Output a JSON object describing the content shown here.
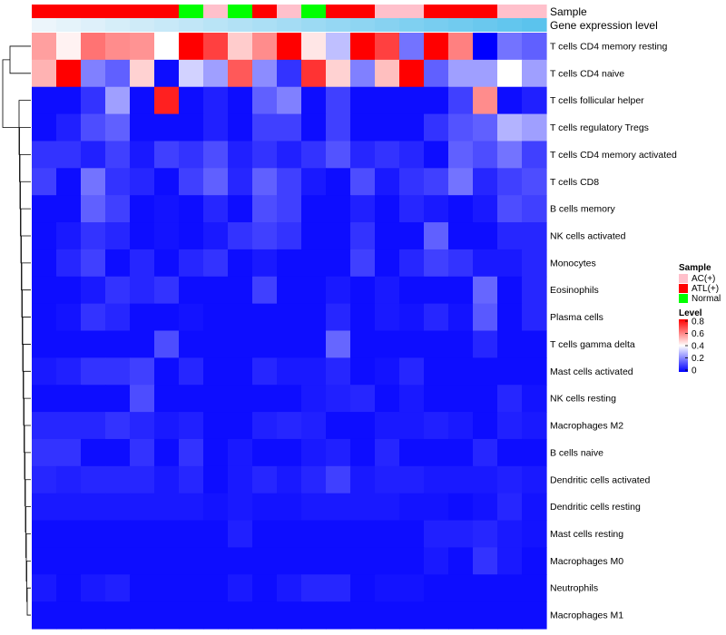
{
  "chart_data": {
    "type": "heatmap",
    "title": "",
    "annotation_tracks": {
      "sample": {
        "label": "Sample",
        "values": [
          "ATL(+)",
          "ATL(+)",
          "ATL(+)",
          "ATL(+)",
          "ATL(+)",
          "ATL(+)",
          "Normal",
          "AC(+)",
          "Normal",
          "ATL(+)",
          "AC(+)",
          "Normal",
          "ATL(+)",
          "ATL(+)",
          "AC(+)",
          "AC(+)",
          "ATL(+)",
          "ATL(+)",
          "ATL(+)",
          "AC(+)",
          "AC(+)"
        ]
      },
      "gene_expression": {
        "label": "Gene expression level",
        "values": [
          0.0,
          0.05,
          0.1,
          0.15,
          0.2,
          0.25,
          0.3,
          0.35,
          0.4,
          0.45,
          0.5,
          0.55,
          0.6,
          0.65,
          0.7,
          0.75,
          0.8,
          0.85,
          0.9,
          0.95,
          1.0
        ]
      }
    },
    "rows": [
      "T cells CD4 memory resting",
      "T cells CD4 naive",
      "T cells follicular helper",
      "T cells regulatory  Tregs",
      "T cells CD4 memory activated",
      "T cells CD8",
      "B cells memory",
      "NK cells activated",
      "Monocytes",
      "Eosinophils",
      "Plasma cells",
      "T cells gamma delta",
      "Mast cells activated",
      "NK cells resting",
      "Macrophages M2",
      "B cells naive",
      "Dendritic cells activated",
      "Dendritic cells resting",
      "Mast cells resting",
      "Macrophages M0",
      "Neutrophils",
      "Macrophages M1"
    ],
    "values": [
      [
        0.55,
        0.42,
        0.62,
        0.58,
        0.57,
        0.4,
        0.8,
        0.7,
        0.48,
        0.58,
        0.8,
        0.44,
        0.3,
        0.8,
        0.7,
        0.18,
        0.8,
        0.6,
        0.0,
        0.18,
        0.15
      ],
      [
        0.52,
        0.8,
        0.2,
        0.15,
        0.47,
        0.02,
        0.33,
        0.25,
        0.66,
        0.22,
        0.08,
        0.72,
        0.47,
        0.2,
        0.5,
        0.8,
        0.15,
        0.25,
        0.25,
        0.4,
        0.25
      ],
      [
        0.02,
        0.02,
        0.08,
        0.25,
        0.02,
        0.75,
        0.02,
        0.05,
        0.02,
        0.15,
        0.2,
        0.02,
        0.1,
        0.02,
        0.02,
        0.02,
        0.02,
        0.1,
        0.58,
        0.02,
        0.05
      ],
      [
        0.02,
        0.05,
        0.12,
        0.15,
        0.02,
        0.02,
        0.02,
        0.05,
        0.02,
        0.1,
        0.1,
        0.02,
        0.1,
        0.02,
        0.02,
        0.02,
        0.08,
        0.13,
        0.15,
        0.28,
        0.25
      ],
      [
        0.08,
        0.08,
        0.05,
        0.1,
        0.04,
        0.1,
        0.08,
        0.12,
        0.05,
        0.08,
        0.05,
        0.08,
        0.13,
        0.06,
        0.08,
        0.06,
        0.02,
        0.15,
        0.12,
        0.18,
        0.1
      ],
      [
        0.1,
        0.02,
        0.18,
        0.08,
        0.06,
        0.02,
        0.1,
        0.15,
        0.06,
        0.15,
        0.1,
        0.04,
        0.02,
        0.12,
        0.04,
        0.08,
        0.1,
        0.18,
        0.06,
        0.1,
        0.12
      ],
      [
        0.02,
        0.02,
        0.15,
        0.1,
        0.02,
        0.03,
        0.02,
        0.06,
        0.02,
        0.12,
        0.1,
        0.02,
        0.02,
        0.05,
        0.02,
        0.06,
        0.04,
        0.02,
        0.04,
        0.12,
        0.1
      ],
      [
        0.02,
        0.04,
        0.08,
        0.06,
        0.02,
        0.03,
        0.02,
        0.04,
        0.08,
        0.1,
        0.08,
        0.02,
        0.02,
        0.08,
        0.02,
        0.02,
        0.15,
        0.02,
        0.02,
        0.06,
        0.06
      ],
      [
        0.02,
        0.06,
        0.1,
        0.02,
        0.06,
        0.02,
        0.06,
        0.08,
        0.02,
        0.04,
        0.02,
        0.02,
        0.02,
        0.1,
        0.02,
        0.06,
        0.1,
        0.08,
        0.04,
        0.04,
        0.06
      ],
      [
        0.02,
        0.02,
        0.04,
        0.08,
        0.06,
        0.08,
        0.02,
        0.02,
        0.02,
        0.1,
        0.02,
        0.02,
        0.04,
        0.02,
        0.04,
        0.02,
        0.02,
        0.02,
        0.16,
        0.02,
        0.06
      ],
      [
        0.02,
        0.03,
        0.08,
        0.06,
        0.02,
        0.02,
        0.03,
        0.02,
        0.02,
        0.02,
        0.02,
        0.02,
        0.06,
        0.02,
        0.04,
        0.03,
        0.06,
        0.03,
        0.14,
        0.02,
        0.06
      ],
      [
        0.02,
        0.02,
        0.02,
        0.02,
        0.02,
        0.12,
        0.02,
        0.02,
        0.02,
        0.02,
        0.02,
        0.02,
        0.16,
        0.02,
        0.02,
        0.02,
        0.02,
        0.02,
        0.06,
        0.02,
        0.02
      ],
      [
        0.04,
        0.05,
        0.08,
        0.08,
        0.1,
        0.02,
        0.06,
        0.02,
        0.02,
        0.06,
        0.04,
        0.04,
        0.06,
        0.02,
        0.03,
        0.06,
        0.02,
        0.02,
        0.02,
        0.02,
        0.02
      ],
      [
        0.02,
        0.02,
        0.02,
        0.02,
        0.12,
        0.02,
        0.02,
        0.02,
        0.02,
        0.02,
        0.02,
        0.04,
        0.05,
        0.06,
        0.02,
        0.04,
        0.02,
        0.02,
        0.02,
        0.06,
        0.03
      ],
      [
        0.06,
        0.06,
        0.06,
        0.08,
        0.06,
        0.04,
        0.05,
        0.02,
        0.02,
        0.05,
        0.06,
        0.05,
        0.02,
        0.02,
        0.04,
        0.04,
        0.05,
        0.04,
        0.02,
        0.05,
        0.04
      ],
      [
        0.08,
        0.08,
        0.02,
        0.02,
        0.08,
        0.02,
        0.08,
        0.02,
        0.04,
        0.02,
        0.02,
        0.04,
        0.05,
        0.02,
        0.06,
        0.02,
        0.02,
        0.02,
        0.06,
        0.02,
        0.02
      ],
      [
        0.06,
        0.05,
        0.06,
        0.06,
        0.06,
        0.04,
        0.06,
        0.02,
        0.04,
        0.06,
        0.04,
        0.06,
        0.1,
        0.04,
        0.05,
        0.05,
        0.04,
        0.04,
        0.04,
        0.05,
        0.04
      ],
      [
        0.04,
        0.04,
        0.04,
        0.04,
        0.04,
        0.04,
        0.04,
        0.03,
        0.04,
        0.03,
        0.03,
        0.04,
        0.04,
        0.04,
        0.04,
        0.03,
        0.03,
        0.02,
        0.03,
        0.06,
        0.03
      ],
      [
        0.02,
        0.02,
        0.02,
        0.02,
        0.02,
        0.02,
        0.02,
        0.02,
        0.05,
        0.02,
        0.02,
        0.02,
        0.02,
        0.02,
        0.02,
        0.02,
        0.05,
        0.05,
        0.06,
        0.04,
        0.03
      ],
      [
        0.02,
        0.02,
        0.02,
        0.02,
        0.02,
        0.02,
        0.02,
        0.02,
        0.02,
        0.02,
        0.02,
        0.02,
        0.02,
        0.02,
        0.02,
        0.02,
        0.04,
        0.02,
        0.08,
        0.04,
        0.02
      ],
      [
        0.04,
        0.02,
        0.04,
        0.05,
        0.02,
        0.02,
        0.02,
        0.02,
        0.04,
        0.02,
        0.04,
        0.06,
        0.06,
        0.02,
        0.03,
        0.03,
        0.02,
        0.02,
        0.02,
        0.02,
        0.02
      ],
      [
        0.02,
        0.02,
        0.02,
        0.02,
        0.02,
        0.02,
        0.02,
        0.02,
        0.02,
        0.02,
        0.02,
        0.02,
        0.02,
        0.02,
        0.02,
        0.02,
        0.02,
        0.02,
        0.02,
        0.02,
        0.02
      ]
    ],
    "color_scale": {
      "title": "Level",
      "min": 0,
      "max": 0.8,
      "ticks": [
        0.8,
        0.6,
        0.4,
        0.2,
        0
      ],
      "colors": [
        "#0000ff",
        "#ffffff",
        "#ff0000"
      ]
    },
    "legend": {
      "title": "Sample",
      "position": "right",
      "entries": [
        {
          "label": "AC(+)",
          "color": "#ffc0cb"
        },
        {
          "label": "ATL(+)",
          "color": "#ff0000"
        },
        {
          "label": "Normal",
          "color": "#00ff00"
        }
      ]
    },
    "gene_expression_colors": [
      "#ecf5fb",
      "#5bc3ed"
    ],
    "dendrogram": "rows clustered (hierarchical), drawn on left"
  }
}
